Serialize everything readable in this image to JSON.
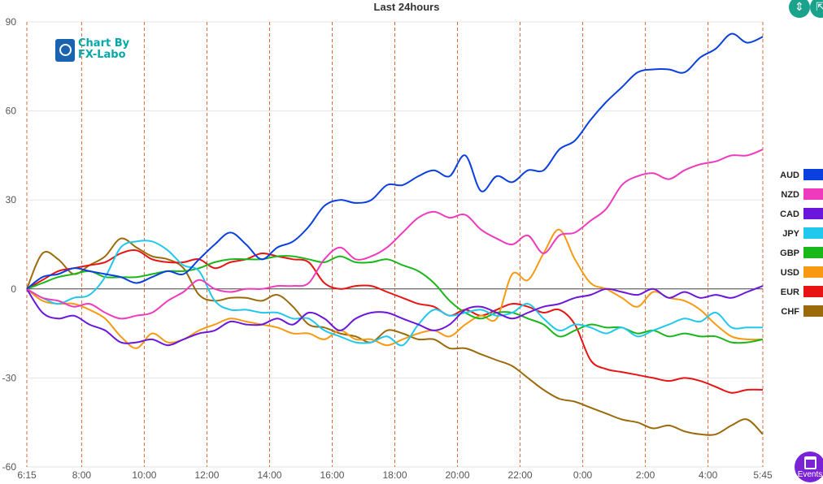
{
  "chart_data": {
    "type": "line",
    "title": "Last 24hours",
    "xlabel": "",
    "ylabel": "",
    "ylim": [
      -60,
      90
    ],
    "yticks": [
      90,
      60,
      30,
      0,
      -30,
      -60
    ],
    "xlim": [
      0,
      23.5
    ],
    "xticks": [
      {
        "label": "6:15",
        "x": 0
      },
      {
        "label": "8:00",
        "x": 1.75
      },
      {
        "label": "10:00",
        "x": 3.75
      },
      {
        "label": "12:00",
        "x": 5.75
      },
      {
        "label": "14:00",
        "x": 7.75
      },
      {
        "label": "16:00",
        "x": 9.75
      },
      {
        "label": "18:00",
        "x": 11.75
      },
      {
        "label": "20:00",
        "x": 13.75
      },
      {
        "label": "22:00",
        "x": 15.75
      },
      {
        "label": "0:00",
        "x": 17.75
      },
      {
        "label": "2:00",
        "x": 19.75
      },
      {
        "label": "4:00",
        "x": 21.75
      },
      {
        "label": "5:45",
        "x": 23.5
      }
    ],
    "grid": true,
    "legend_position": "right",
    "x": [
      0,
      0.5,
      1,
      1.5,
      2,
      2.5,
      3,
      3.5,
      4,
      4.5,
      5,
      5.5,
      6,
      6.5,
      7,
      7.5,
      8,
      8.5,
      9,
      9.5,
      10,
      10.5,
      11,
      11.5,
      12,
      12.5,
      13,
      13.5,
      14,
      14.5,
      15,
      15.5,
      16,
      16.5,
      17,
      17.5,
      18,
      18.5,
      19,
      19.5,
      20,
      20.5,
      21,
      21.5,
      22,
      22.5,
      23,
      23.5
    ],
    "series": [
      {
        "name": "AUD",
        "color": "#0a3fe0",
        "values": [
          0,
          4,
          5,
          7,
          6,
          5,
          4,
          2,
          4,
          6,
          5,
          10,
          15,
          19,
          15,
          10,
          14,
          16,
          21,
          28,
          30,
          29,
          30,
          35,
          35,
          38,
          40,
          38,
          45,
          33,
          38,
          36,
          40,
          40,
          47,
          50,
          57,
          63,
          68,
          73,
          74,
          74,
          73,
          78,
          81,
          86,
          83,
          85
        ]
      },
      {
        "name": "NZD",
        "color": "#ee3bbd",
        "values": [
          0,
          -3,
          -4,
          -6,
          -5,
          -8,
          -10,
          -9,
          -8,
          -4,
          -1,
          3,
          0,
          -1,
          0,
          0,
          1,
          1,
          2,
          10,
          14,
          10,
          11,
          14,
          19,
          24,
          26,
          24,
          25,
          20,
          17,
          15,
          18,
          12,
          18,
          19,
          23,
          27,
          35,
          38,
          39,
          37,
          40,
          42,
          43,
          45,
          45,
          47
        ]
      },
      {
        "name": "CAD",
        "color": "#6b16dc",
        "values": [
          0,
          -8,
          -10,
          -9,
          -12,
          -14,
          -18,
          -18,
          -17,
          -19,
          -17,
          -15,
          -14,
          -11,
          -12,
          -12,
          -10,
          -12,
          -8,
          -10,
          -14,
          -10,
          -8,
          -8,
          -10,
          -12,
          -14,
          -12,
          -7,
          -6,
          -8,
          -10,
          -8,
          -6,
          -5,
          -3,
          -2,
          0,
          -1,
          -2,
          0,
          -3,
          -1,
          -3,
          -2,
          -3,
          -1,
          1
        ]
      },
      {
        "name": "JPY",
        "color": "#1fc8ec",
        "values": [
          0,
          -3,
          -5,
          -3,
          -2,
          4,
          14,
          16,
          16,
          13,
          8,
          6,
          -4,
          -7,
          -7,
          -8,
          -8,
          -10,
          -10,
          -14,
          -16,
          -18,
          -18,
          -16,
          -19,
          -12,
          -7,
          -9,
          -8,
          -7,
          -9,
          -8,
          -5,
          -10,
          -14,
          -12,
          -13,
          -15,
          -13,
          -16,
          -14,
          -12,
          -10,
          -11,
          -8,
          -13,
          -13,
          -13
        ]
      },
      {
        "name": "GBP",
        "color": "#18b81a",
        "values": [
          0,
          2,
          4,
          5,
          6,
          4,
          4,
          4,
          5,
          6,
          6,
          7,
          9,
          10,
          10,
          10,
          11,
          11,
          10,
          9,
          11,
          9,
          9,
          10,
          8,
          6,
          2,
          -4,
          -8,
          -10,
          -8,
          -8,
          -10,
          -12,
          -16,
          -14,
          -12,
          -13,
          -13,
          -15,
          -14,
          -16,
          -15,
          -16,
          -16,
          -18,
          -18,
          -17
        ]
      },
      {
        "name": "USD",
        "color": "#f79a12",
        "values": [
          0,
          -4,
          -5,
          -5,
          -7,
          -10,
          -16,
          -20,
          -15,
          -18,
          -17,
          -14,
          -12,
          -10,
          -11,
          -12,
          -13,
          -15,
          -15,
          -17,
          -14,
          -17,
          -17,
          -19,
          -17,
          -15,
          -14,
          -16,
          -12,
          -9,
          -10,
          5,
          3,
          12,
          20,
          10,
          2,
          0,
          -3,
          -6,
          -1,
          -3,
          -4,
          -7,
          -12,
          -16,
          -17,
          -17
        ]
      },
      {
        "name": "EUR",
        "color": "#e81313",
        "values": [
          0,
          3,
          6,
          7,
          8,
          9,
          12,
          13,
          10,
          9,
          9,
          10,
          7,
          9,
          10,
          12,
          11,
          10,
          9,
          2,
          0,
          1,
          1,
          -1,
          -3,
          -5,
          -6,
          -9,
          -7,
          -9,
          -7,
          -5,
          -6,
          -8,
          -7,
          -12,
          -24,
          -27,
          -28,
          -29,
          -30,
          -31,
          -30,
          -31,
          -33,
          -35,
          -34,
          -34
        ]
      },
      {
        "name": "CHF",
        "color": "#9b6a0a",
        "values": [
          0,
          12,
          10,
          5,
          8,
          11,
          17,
          14,
          11,
          10,
          7,
          -2,
          -4,
          -3,
          -3,
          -4,
          -2,
          -6,
          -12,
          -13,
          -15,
          -16,
          -18,
          -14,
          -15,
          -17,
          -17,
          -20,
          -20,
          -22,
          -24,
          -26,
          -30,
          -34,
          -37,
          -38,
          -40,
          -42,
          -44,
          -45,
          -47,
          -46,
          -48,
          -49,
          -49,
          -46,
          -44,
          -49
        ]
      }
    ]
  },
  "ui": {
    "logo_line1": "Chart By",
    "logo_line2": "FX-Labo",
    "events_label": "Events"
  },
  "icons": {
    "logo": "magnifier-chart-icon",
    "ctrl_left": "split-vertical-icon",
    "ctrl_right": "expand-icon",
    "events": "calendar-icon"
  }
}
